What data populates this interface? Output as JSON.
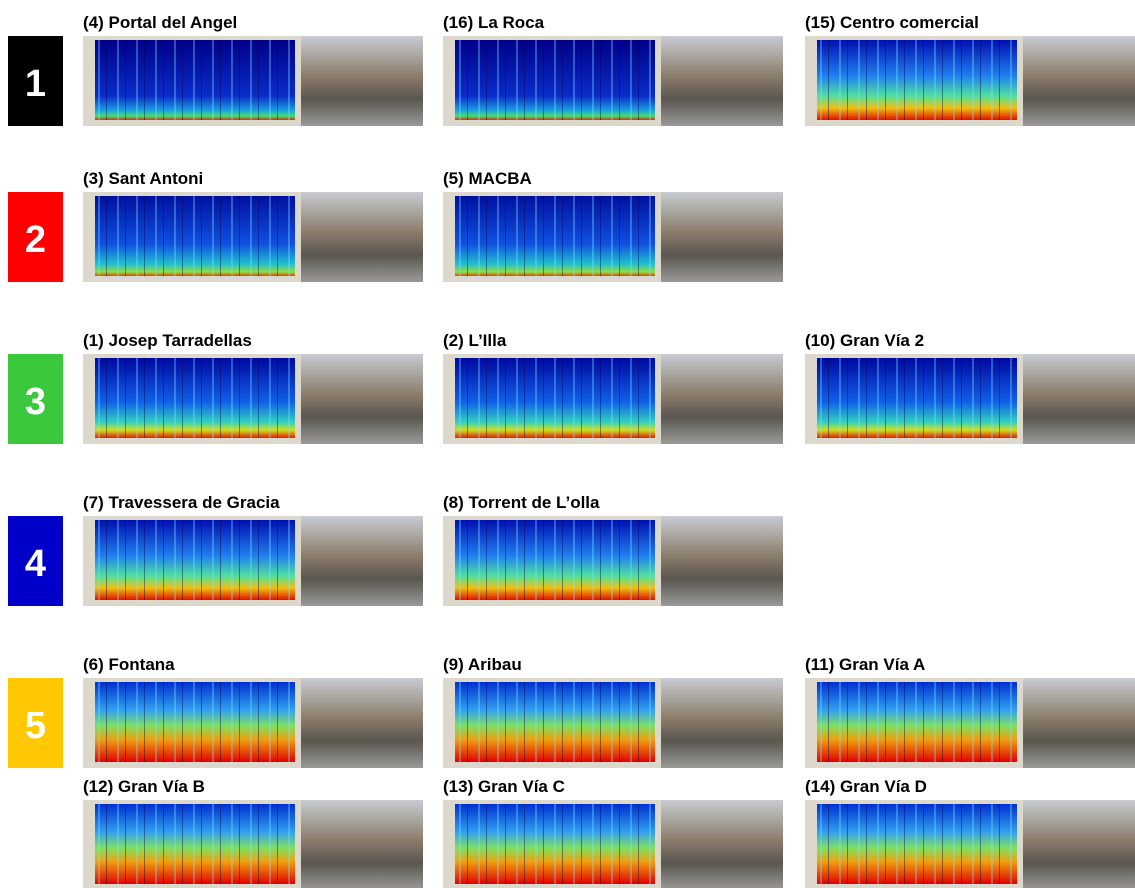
{
  "groups": [
    {
      "label": "1",
      "color": "#000000",
      "panels": [
        {
          "title": "(4) Portal del Angel"
        },
        {
          "title": "(16) La Roca"
        },
        {
          "title": "(15) Centro comercial"
        }
      ]
    },
    {
      "label": "2",
      "color": "#ff0000",
      "panels": [
        {
          "title": "(3) Sant Antoni"
        },
        {
          "title": "(5) MACBA"
        }
      ]
    },
    {
      "label": "3",
      "color": "#3cc83c",
      "panels": [
        {
          "title": "(1) Josep Tarradellas"
        },
        {
          "title": "(2) L’Illa"
        },
        {
          "title": "(10) Gran Vía 2"
        }
      ]
    },
    {
      "label": "4",
      "color": "#0000c8",
      "panels": [
        {
          "title": "(7) Travessera de Gracia"
        },
        {
          "title": "(8) Torrent de L’olla"
        }
      ]
    },
    {
      "label": "5",
      "color": "#ffc800",
      "panels": [
        {
          "title": "(6) Fontana"
        },
        {
          "title": "(9) Aribau"
        },
        {
          "title": "(11) Gran Vía A"
        },
        {
          "title": "(12) Gran Vía B"
        },
        {
          "title": "(13) Gran Vía C"
        },
        {
          "title": "(14) Gran Vía D"
        }
      ]
    }
  ]
}
